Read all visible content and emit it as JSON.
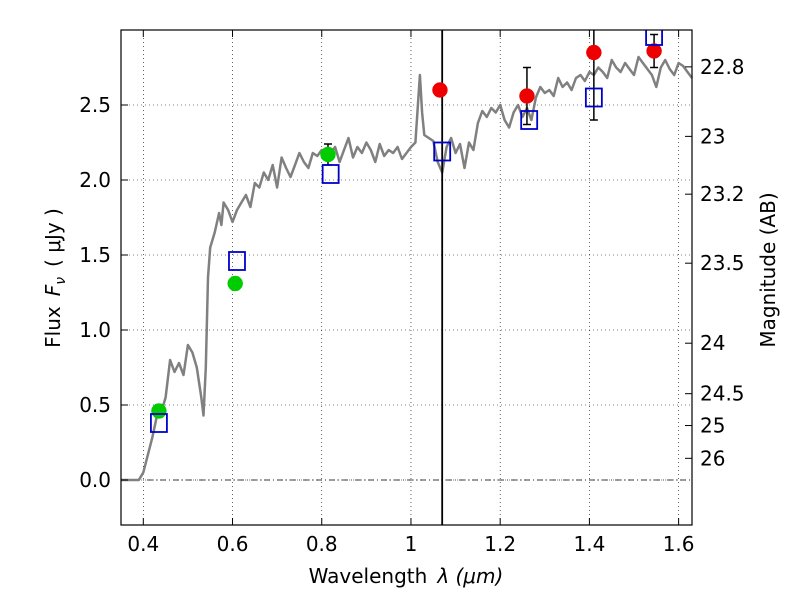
{
  "chart_data": {
    "type": "scatter",
    "xlabel_text": "Wavelength",
    "xlabel_math": "λ (μm)",
    "ylabel_text": "Flux",
    "ylabel_math": "F",
    "ylabel_sub": "ν",
    "ylabel_unit": "( μJy )",
    "y2label": "Magnitude (AB)",
    "xlim": [
      0.35,
      1.63
    ],
    "ylim": [
      -0.3,
      3.0
    ],
    "grid": true,
    "x_ticks": [
      {
        "v": 0.4,
        "label": "0.4"
      },
      {
        "v": 0.6,
        "label": "0.6"
      },
      {
        "v": 0.8,
        "label": "0.8"
      },
      {
        "v": 1.0,
        "label": "1"
      },
      {
        "v": 1.2,
        "label": "1.2"
      },
      {
        "v": 1.4,
        "label": "1.4"
      },
      {
        "v": 1.6,
        "label": "1.6"
      }
    ],
    "y_ticks": [
      {
        "v": 0.0,
        "label": "0.0"
      },
      {
        "v": 0.5,
        "label": "0.5"
      },
      {
        "v": 1.0,
        "label": "1.0"
      },
      {
        "v": 1.5,
        "label": "1.5"
      },
      {
        "v": 2.0,
        "label": "2.0"
      },
      {
        "v": 2.5,
        "label": "2.5"
      }
    ],
    "magnitude_ticks": [
      {
        "mag": 22.8,
        "label": "22.8"
      },
      {
        "mag": 23.0,
        "label": "23"
      },
      {
        "mag": 23.2,
        "label": "23.2"
      },
      {
        "mag": 23.5,
        "label": "23.5"
      },
      {
        "mag": 24.0,
        "label": "24"
      },
      {
        "mag": 24.5,
        "label": "24.5"
      },
      {
        "mag": 25.0,
        "label": "25"
      },
      {
        "mag": 26.0,
        "label": "26"
      }
    ],
    "vertical_line_x": 1.07,
    "model_spectrum": {
      "color": "#808080",
      "x": [
        0.35,
        0.39,
        0.4,
        0.42,
        0.43,
        0.44,
        0.45,
        0.46,
        0.47,
        0.48,
        0.49,
        0.5,
        0.51,
        0.52,
        0.53,
        0.535,
        0.54,
        0.545,
        0.55,
        0.56,
        0.57,
        0.575,
        0.58,
        0.59,
        0.595,
        0.6,
        0.61,
        0.62,
        0.63,
        0.64,
        0.65,
        0.66,
        0.67,
        0.68,
        0.69,
        0.7,
        0.71,
        0.72,
        0.73,
        0.74,
        0.75,
        0.76,
        0.77,
        0.78,
        0.79,
        0.8,
        0.81,
        0.82,
        0.83,
        0.84,
        0.85,
        0.86,
        0.87,
        0.88,
        0.89,
        0.9,
        0.91,
        0.92,
        0.93,
        0.94,
        0.95,
        0.96,
        0.97,
        0.98,
        0.99,
        1.0,
        1.01,
        1.02,
        1.025,
        1.03,
        1.04,
        1.05,
        1.06,
        1.07,
        1.08,
        1.09,
        1.1,
        1.11,
        1.12,
        1.13,
        1.14,
        1.15,
        1.16,
        1.17,
        1.18,
        1.19,
        1.2,
        1.21,
        1.22,
        1.23,
        1.24,
        1.25,
        1.26,
        1.27,
        1.28,
        1.29,
        1.3,
        1.31,
        1.32,
        1.33,
        1.34,
        1.35,
        1.36,
        1.37,
        1.38,
        1.39,
        1.4,
        1.41,
        1.42,
        1.43,
        1.44,
        1.45,
        1.46,
        1.47,
        1.48,
        1.49,
        1.5,
        1.51,
        1.52,
        1.53,
        1.54,
        1.55,
        1.56,
        1.57,
        1.58,
        1.59,
        1.6,
        1.61,
        1.62,
        1.63
      ],
      "y": [
        0.0,
        0.0,
        0.05,
        0.28,
        0.42,
        0.45,
        0.55,
        0.8,
        0.72,
        0.78,
        0.7,
        0.9,
        0.85,
        0.75,
        0.55,
        0.43,
        0.75,
        1.35,
        1.55,
        1.65,
        1.78,
        1.7,
        1.85,
        1.8,
        1.76,
        1.72,
        1.8,
        1.85,
        1.9,
        1.82,
        1.98,
        1.95,
        2.05,
        2.0,
        2.1,
        1.95,
        2.15,
        2.08,
        2.02,
        2.1,
        2.18,
        2.12,
        2.08,
        2.18,
        2.16,
        2.2,
        2.15,
        2.18,
        2.22,
        2.12,
        2.2,
        2.28,
        2.15,
        2.22,
        2.18,
        2.25,
        2.2,
        2.12,
        2.24,
        2.16,
        2.2,
        2.18,
        2.22,
        2.14,
        2.18,
        2.22,
        2.25,
        2.7,
        2.45,
        2.3,
        2.28,
        2.26,
        2.12,
        2.05,
        2.22,
        2.28,
        2.18,
        2.24,
        2.08,
        2.25,
        2.2,
        2.38,
        2.46,
        2.42,
        2.48,
        2.45,
        2.5,
        2.4,
        2.35,
        2.45,
        2.5,
        2.42,
        2.48,
        2.4,
        2.55,
        2.62,
        2.58,
        2.6,
        2.56,
        2.68,
        2.62,
        2.65,
        2.6,
        2.68,
        2.7,
        2.66,
        2.72,
        2.7,
        2.75,
        2.72,
        2.68,
        2.8,
        2.75,
        2.72,
        2.78,
        2.74,
        2.7,
        2.82,
        2.78,
        2.74,
        2.7,
        2.62,
        2.75,
        2.8,
        2.74,
        2.7,
        2.78,
        2.76,
        2.72,
        2.68
      ]
    },
    "series": [
      {
        "marker": "circle",
        "color": "#00cc00",
        "points": [
          {
            "x": 0.435,
            "y": 0.46,
            "err": 0.04
          },
          {
            "x": 0.606,
            "y": 1.31,
            "err": 0.04
          },
          {
            "x": 0.814,
            "y": 2.17,
            "err": 0.07
          }
        ]
      },
      {
        "marker": "circle",
        "color": "#ee0000",
        "points": [
          {
            "x": 1.065,
            "y": 2.6,
            "err": 0.0
          },
          {
            "x": 1.26,
            "y": 2.56,
            "err": 0.19
          },
          {
            "x": 1.41,
            "y": 2.85,
            "err": 0.45
          },
          {
            "x": 1.545,
            "y": 2.86,
            "err": 0.11
          }
        ]
      },
      {
        "marker": "open-square",
        "color": "#0000cc",
        "points": [
          {
            "x": 0.435,
            "y": 0.38
          },
          {
            "x": 0.61,
            "y": 1.46
          },
          {
            "x": 0.82,
            "y": 2.04
          },
          {
            "x": 1.07,
            "y": 2.19
          },
          {
            "x": 1.265,
            "y": 2.4
          },
          {
            "x": 1.41,
            "y": 2.55
          },
          {
            "x": 1.545,
            "y": 2.96
          }
        ]
      }
    ]
  }
}
